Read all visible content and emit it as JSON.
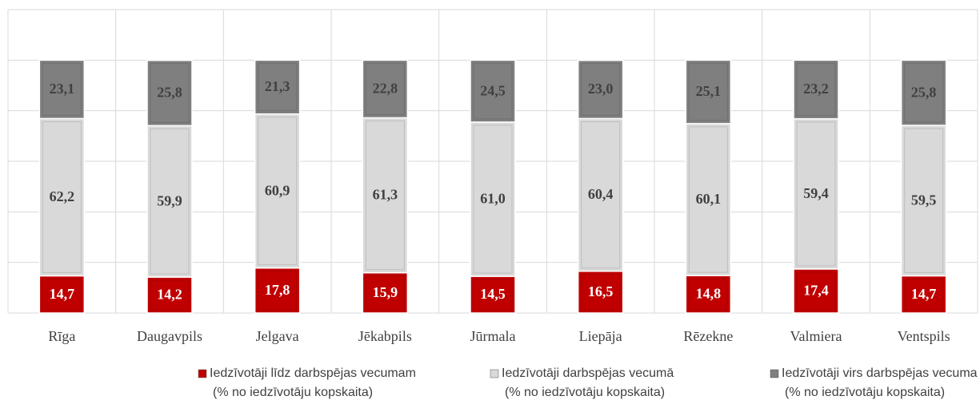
{
  "chart_data": {
    "type": "stacked_bar",
    "categories": [
      "Rīga",
      "Daugavpils",
      "Jelgava",
      "Jēkabpils",
      "Jūrmala",
      "Liepāja",
      "Rēzekne",
      "Valmiera",
      "Ventspils"
    ],
    "series": [
      {
        "name": "Iedzīvotāji līdz darbspējas vecumam\n(% no iedzīvotāju kopskaita)",
        "color": "#c00000",
        "values": [
          14.7,
          14.2,
          17.8,
          15.9,
          14.5,
          16.5,
          14.8,
          17.4,
          14.7
        ],
        "value_labels": [
          "14,7",
          "14,2",
          "17,8",
          "15,9",
          "14,5",
          "16,5",
          "14,8",
          "17,4",
          "14,7"
        ]
      },
      {
        "name": "Iedzīvotāji darbspējas vecumā\n(% no iedzīvotāju kopskaita)",
        "color": "#d9d9d9",
        "values": [
          62.2,
          59.9,
          60.9,
          61.3,
          61.0,
          60.4,
          60.1,
          59.4,
          59.5
        ],
        "value_labels": [
          "62,2",
          "59,9",
          "60,9",
          "61,3",
          "61,0",
          "60,4",
          "60,1",
          "59,4",
          "59,5"
        ]
      },
      {
        "name": "Iedzīvotāji virs darbspējas vecuma\n(% no iedzīvotāju kopskaita)",
        "color": "#7f7f7f",
        "values": [
          23.1,
          25.8,
          21.3,
          22.8,
          24.5,
          23.0,
          25.1,
          23.2,
          25.8
        ],
        "value_labels": [
          "23,1",
          "25,8",
          "21,3",
          "22,8",
          "24,5",
          "23,0",
          "25,1",
          "23,2",
          "25,8"
        ]
      }
    ],
    "ylim": [
      0,
      120
    ],
    "yticks": [
      0,
      20,
      40,
      60,
      80,
      100,
      120
    ],
    "grid": true,
    "legend": "bottom"
  }
}
